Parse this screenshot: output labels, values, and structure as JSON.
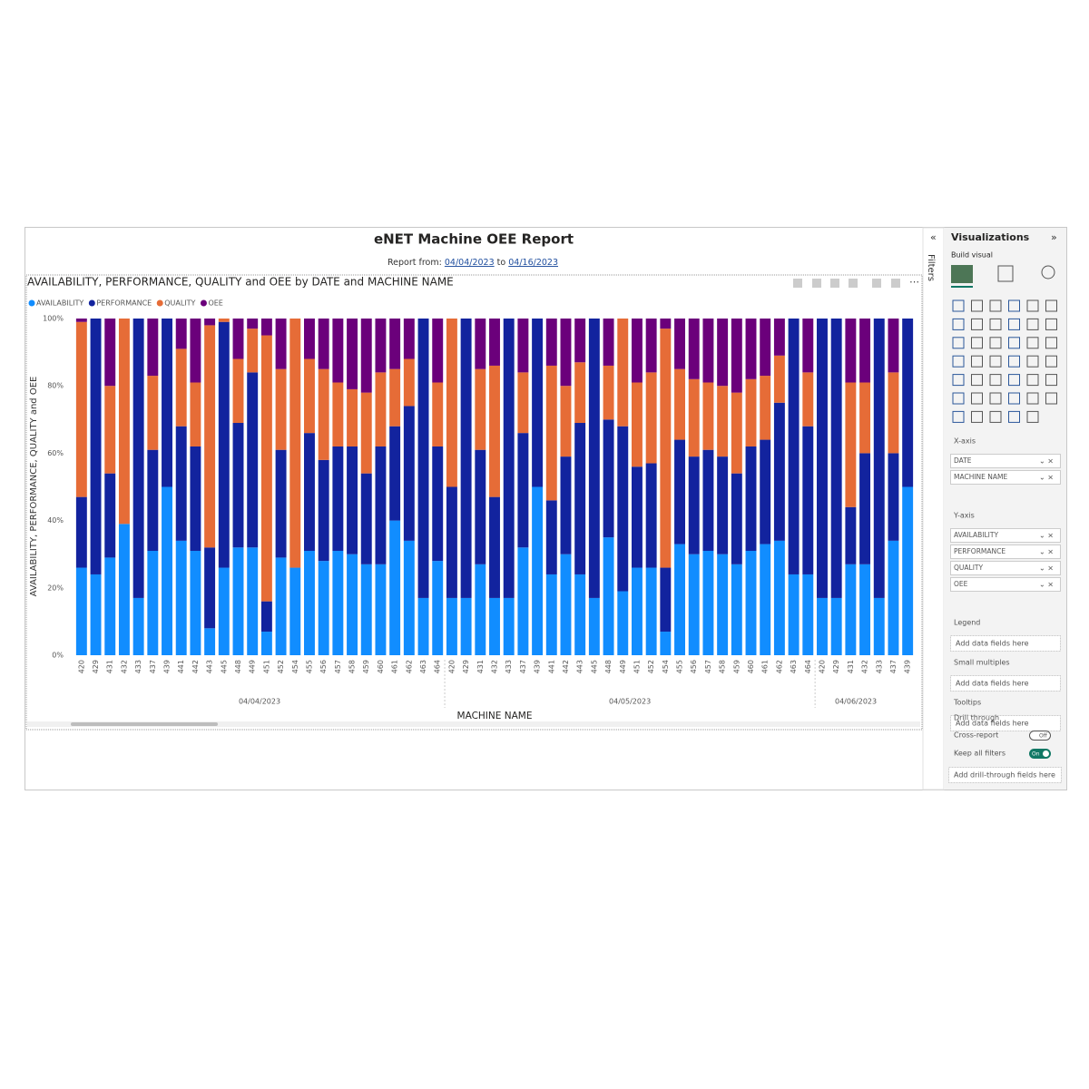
{
  "report": {
    "title": "eNET Machine OEE Report",
    "subtitle_prefix": "Report from:",
    "date_from": "04/04/2023",
    "to": "to",
    "date_to": "04/16/2023"
  },
  "chart_data": {
    "type": "stacked-percent-bar",
    "title": "AVAILABILITY, PERFORMANCE, QUALITY and OEE by DATE and MACHINE NAME",
    "y_label": "AVAILABILITY, PERFORMANCE, QUALITY and OEE",
    "x_label": "MACHINE NAME",
    "category_groups": [
      {
        "label": "04/04/2023",
        "categories": [
          "420",
          "429",
          "431",
          "432",
          "433",
          "437",
          "439",
          "441",
          "442",
          "443",
          "445",
          "448",
          "449",
          "451",
          "452",
          "454",
          "455",
          "456",
          "457",
          "458",
          "459",
          "460",
          "461",
          "462",
          "463",
          "464"
        ]
      },
      {
        "label": "04/05/2023",
        "categories": [
          "420",
          "429",
          "431",
          "432",
          "433",
          "437",
          "439",
          "441",
          "442",
          "443",
          "445",
          "448",
          "449",
          "451",
          "452",
          "454",
          "455",
          "456",
          "457",
          "458",
          "459",
          "460",
          "461",
          "462",
          "463",
          "464"
        ]
      },
      {
        "label": "04/06/2023",
        "categories": [
          "420",
          "429",
          "431",
          "432",
          "433",
          "437",
          "439"
        ]
      }
    ],
    "series": [
      {
        "name": "AVAILABILITY",
        "color": "#118DFF",
        "values": [
          26,
          24,
          29,
          39,
          17,
          31,
          50,
          34,
          31,
          8,
          26,
          32,
          32,
          7,
          29,
          26,
          31,
          28,
          31,
          30,
          27,
          27,
          40,
          34,
          17,
          28,
          17,
          17,
          27,
          17,
          17,
          32,
          50,
          24,
          30,
          24,
          17,
          35,
          19,
          26,
          26,
          7,
          33,
          30,
          31,
          30,
          27,
          31,
          33,
          34,
          24,
          24,
          17,
          17,
          27,
          27,
          17,
          34,
          50
        ]
      },
      {
        "name": "PERFORMANCE",
        "color": "#12239E",
        "values": [
          21,
          76,
          25,
          0,
          83,
          30,
          50,
          34,
          31,
          24,
          73,
          37,
          52,
          9,
          32,
          0,
          35,
          30,
          31,
          32,
          27,
          35,
          28,
          40,
          83,
          34,
          33,
          83,
          34,
          30,
          83,
          34,
          50,
          22,
          29,
          45,
          83,
          35,
          49,
          30,
          31,
          19,
          31,
          29,
          30,
          29,
          27,
          31,
          31,
          41,
          76,
          44,
          83,
          83,
          17,
          33,
          83,
          26,
          50
        ]
      },
      {
        "name": "QUALITY",
        "color": "#E66C37",
        "values": [
          52,
          0,
          26,
          61,
          0,
          22,
          0,
          23,
          19,
          66,
          1,
          19,
          13,
          79,
          24,
          74,
          22,
          27,
          19,
          17,
          24,
          22,
          17,
          14,
          0,
          19,
          50,
          0,
          24,
          39,
          0,
          18,
          0,
          40,
          21,
          18,
          0,
          16,
          32,
          25,
          27,
          71,
          21,
          23,
          20,
          21,
          24,
          20,
          19,
          14,
          0,
          16,
          0,
          0,
          37,
          21,
          0,
          24,
          0
        ]
      },
      {
        "name": "OEE",
        "color": "#6B007B",
        "values": [
          1,
          0,
          20,
          0,
          0,
          17,
          0,
          9,
          19,
          2,
          0,
          12,
          3,
          5,
          15,
          0,
          12,
          15,
          19,
          21,
          22,
          16,
          15,
          12,
          0,
          19,
          0,
          0,
          15,
          14,
          0,
          16,
          0,
          14,
          20,
          13,
          0,
          14,
          0,
          19,
          16,
          3,
          15,
          18,
          19,
          20,
          22,
          18,
          17,
          11,
          0,
          16,
          0,
          0,
          19,
          19,
          0,
          16,
          0
        ]
      }
    ],
    "ylim": [
      0,
      100
    ],
    "yticks": [
      {
        "value": 0,
        "label": "0%"
      },
      {
        "value": 20,
        "label": "20%"
      },
      {
        "value": 40,
        "label": "40%"
      },
      {
        "value": 60,
        "label": "60%"
      },
      {
        "value": 80,
        "label": "80%"
      },
      {
        "value": 100,
        "label": "100%"
      }
    ],
    "grid": false,
    "legend": "top-left"
  },
  "pane": {
    "filters": "Filters",
    "title": "Visualizations",
    "tab": "Build visual",
    "wells": [
      {
        "label": "X-axis",
        "fields": [
          "DATE",
          "MACHINE NAME"
        ]
      },
      {
        "label": "Y-axis",
        "fields": [
          "AVAILABILITY",
          "PERFORMANCE",
          "QUALITY",
          "OEE"
        ]
      },
      {
        "label": "Legend",
        "placeholder": "Add data fields here"
      },
      {
        "label": "Small multiples",
        "placeholder": "Add data fields here"
      },
      {
        "label": "Tooltips",
        "placeholder": "Add data fields here"
      }
    ],
    "drill": {
      "label": "Drill through",
      "cross": "Cross-report",
      "cross_state": "Off",
      "keep": "Keep all filters",
      "keep_state": "On",
      "placeholder": "Add drill-through fields here"
    }
  }
}
